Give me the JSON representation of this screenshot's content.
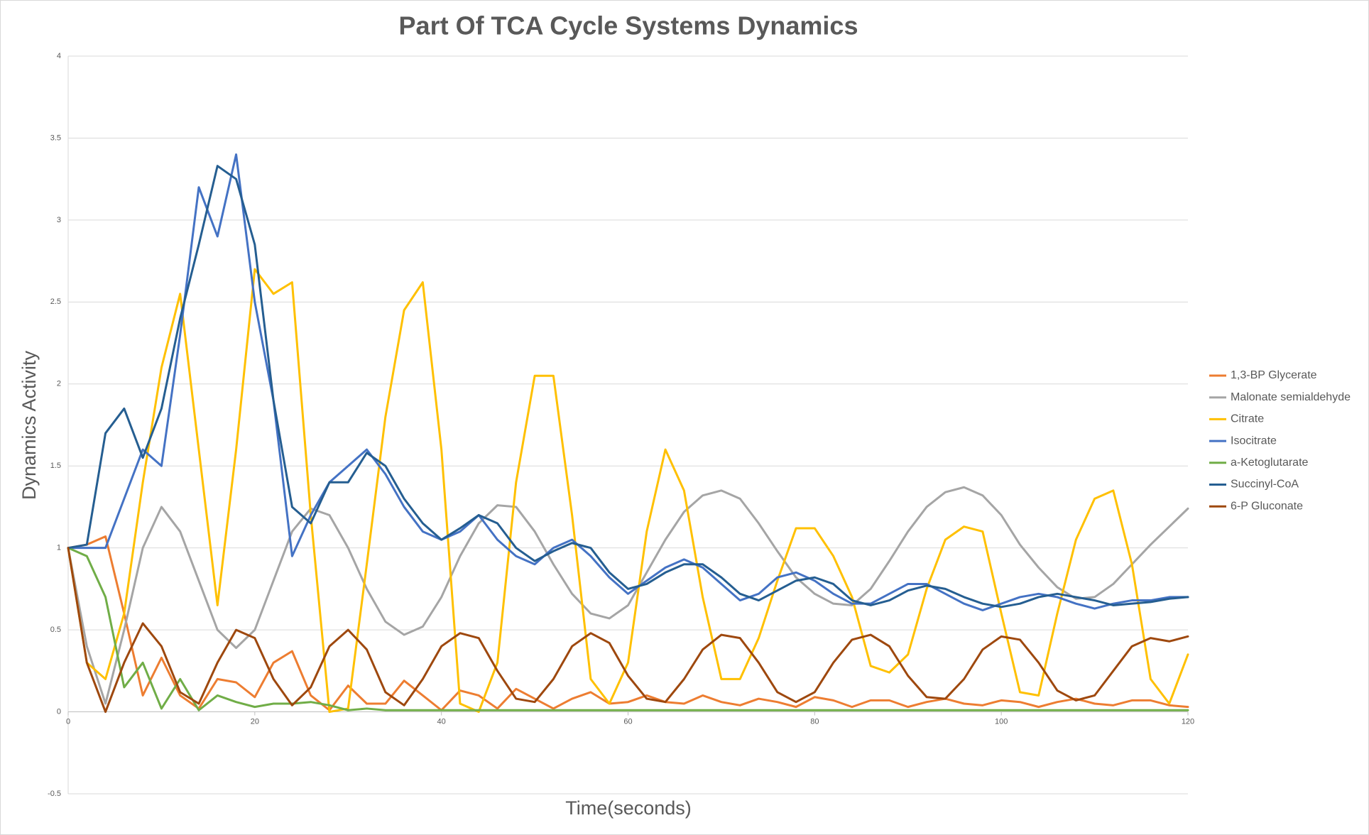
{
  "chart_data": {
    "type": "line",
    "title": "Part Of TCA Cycle Systems Dynamics",
    "x_label": "Time(seconds)",
    "y_label": "Dynamics Activity",
    "xlim": [
      0,
      120
    ],
    "xticks": [
      0,
      20,
      40,
      60,
      80,
      100,
      120
    ],
    "ylim": [
      -0.5,
      4
    ],
    "yticks": [
      -0.5,
      0,
      0.5,
      1,
      1.5,
      2,
      2.5,
      3,
      3.5,
      4
    ],
    "grid": true,
    "legend": "right",
    "x": [
      0,
      2,
      4,
      6,
      8,
      10,
      12,
      14,
      16,
      18,
      20,
      22,
      24,
      26,
      28,
      30,
      32,
      34,
      36,
      38,
      40,
      42,
      44,
      46,
      48,
      50,
      52,
      54,
      56,
      58,
      60,
      62,
      64,
      66,
      68,
      70,
      72,
      74,
      76,
      78,
      80,
      82,
      84,
      86,
      88,
      90,
      92,
      94,
      96,
      98,
      100,
      102,
      104,
      106,
      108,
      110,
      112,
      114,
      116,
      118,
      120
    ],
    "series": [
      {
        "name": "1,3-BP Glycerate",
        "color": "#ED7D31",
        "values": [
          1,
          1.02,
          1.07,
          0.6,
          0.1,
          0.33,
          0.1,
          0.02,
          0.2,
          0.18,
          0.09,
          0.3,
          0.37,
          0.1,
          0.01,
          0.16,
          0.05,
          0.05,
          0.19,
          0.1,
          0.01,
          0.13,
          0.1,
          0.02,
          0.14,
          0.08,
          0.02,
          0.08,
          0.12,
          0.05,
          0.06,
          0.1,
          0.06,
          0.05,
          0.1,
          0.06,
          0.04,
          0.08,
          0.06,
          0.03,
          0.09,
          0.07,
          0.03,
          0.07,
          0.07,
          0.03,
          0.06,
          0.08,
          0.05,
          0.04,
          0.07,
          0.06,
          0.03,
          0.06,
          0.08,
          0.05,
          0.04,
          0.07,
          0.07,
          0.04,
          0.03
        ]
      },
      {
        "name": "Malonate semialdehyde",
        "color": "#A5A5A5",
        "values": [
          1,
          0.4,
          0.05,
          0.5,
          1.0,
          1.25,
          1.1,
          0.8,
          0.5,
          0.39,
          0.5,
          0.8,
          1.1,
          1.24,
          1.2,
          1.0,
          0.75,
          0.55,
          0.47,
          0.52,
          0.7,
          0.95,
          1.15,
          1.26,
          1.25,
          1.1,
          0.9,
          0.72,
          0.6,
          0.57,
          0.65,
          0.85,
          1.05,
          1.22,
          1.32,
          1.35,
          1.3,
          1.15,
          0.98,
          0.82,
          0.72,
          0.66,
          0.65,
          0.75,
          0.92,
          1.1,
          1.25,
          1.34,
          1.37,
          1.32,
          1.2,
          1.02,
          0.88,
          0.76,
          0.69,
          0.7,
          0.78,
          0.9,
          1.02,
          1.13,
          1.24
        ]
      },
      {
        "name": "Citrate",
        "color": "#FFC000",
        "values": [
          1,
          0.3,
          0.2,
          0.6,
          1.4,
          2.1,
          2.55,
          1.6,
          0.65,
          1.6,
          2.7,
          2.55,
          2.62,
          1.2,
          0,
          0.02,
          0.9,
          1.8,
          2.45,
          2.62,
          1.6,
          0.05,
          0,
          0.3,
          1.4,
          2.05,
          2.05,
          1.2,
          0.2,
          0.05,
          0.3,
          1.1,
          1.6,
          1.35,
          0.7,
          0.2,
          0.2,
          0.45,
          0.8,
          1.12,
          1.12,
          0.95,
          0.7,
          0.28,
          0.24,
          0.35,
          0.75,
          1.05,
          1.13,
          1.1,
          0.6,
          0.12,
          0.1,
          0.6,
          1.05,
          1.3,
          1.35,
          0.9,
          0.2,
          0.05,
          0.35
        ]
      },
      {
        "name": "Isocitrate",
        "color": "#4472C4",
        "values": [
          1,
          1,
          1.0,
          1.3,
          1.6,
          1.5,
          2.3,
          3.2,
          2.9,
          3.4,
          2.5,
          1.9,
          0.95,
          1.2,
          1.4,
          1.5,
          1.6,
          1.45,
          1.25,
          1.1,
          1.05,
          1.1,
          1.2,
          1.05,
          0.95,
          0.9,
          1.0,
          1.05,
          0.95,
          0.82,
          0.72,
          0.8,
          0.88,
          0.93,
          0.88,
          0.78,
          0.68,
          0.72,
          0.82,
          0.85,
          0.8,
          0.72,
          0.66,
          0.66,
          0.72,
          0.78,
          0.78,
          0.72,
          0.66,
          0.62,
          0.66,
          0.7,
          0.72,
          0.7,
          0.66,
          0.63,
          0.66,
          0.68,
          0.68,
          0.7,
          0.7
        ]
      },
      {
        "name": "a-Ketoglutarate",
        "color": "#70AD47",
        "values": [
          1,
          0.95,
          0.7,
          0.15,
          0.3,
          0.02,
          0.2,
          0.01,
          0.1,
          0.06,
          0.03,
          0.05,
          0.05,
          0.06,
          0.04,
          0.01,
          0.02,
          0.01,
          0.01,
          0.01,
          0.01,
          0.01,
          0.01,
          0.01,
          0.01,
          0.01,
          0.01,
          0.01,
          0.01,
          0.01,
          0.01,
          0.01,
          0.01,
          0.01,
          0.01,
          0.01,
          0.01,
          0.01,
          0.01,
          0.01,
          0.01,
          0.01,
          0.01,
          0.01,
          0.01,
          0.01,
          0.01,
          0.01,
          0.01,
          0.01,
          0.01,
          0.01,
          0.01,
          0.01,
          0.01,
          0.01,
          0.01,
          0.01,
          0.01,
          0.01,
          0.01
        ]
      },
      {
        "name": "Succinyl-CoA",
        "color": "#255E91",
        "values": [
          1,
          1.02,
          1.7,
          1.85,
          1.55,
          1.85,
          2.4,
          2.85,
          3.33,
          3.25,
          2.85,
          1.9,
          1.25,
          1.15,
          1.4,
          1.4,
          1.58,
          1.5,
          1.3,
          1.15,
          1.05,
          1.12,
          1.2,
          1.15,
          1.0,
          0.92,
          0.98,
          1.03,
          1.0,
          0.85,
          0.75,
          0.78,
          0.85,
          0.9,
          0.9,
          0.82,
          0.72,
          0.68,
          0.74,
          0.8,
          0.82,
          0.78,
          0.68,
          0.65,
          0.68,
          0.74,
          0.77,
          0.75,
          0.7,
          0.66,
          0.64,
          0.66,
          0.7,
          0.72,
          0.7,
          0.68,
          0.65,
          0.66,
          0.67,
          0.69,
          0.7
        ]
      },
      {
        "name": "6-P Gluconate",
        "color": "#9E480E",
        "values": [
          1,
          0.3,
          0,
          0.3,
          0.54,
          0.4,
          0.12,
          0.05,
          0.3,
          0.5,
          0.45,
          0.2,
          0.04,
          0.15,
          0.4,
          0.5,
          0.38,
          0.12,
          0.04,
          0.2,
          0.4,
          0.48,
          0.45,
          0.25,
          0.08,
          0.06,
          0.2,
          0.4,
          0.48,
          0.42,
          0.22,
          0.08,
          0.06,
          0.2,
          0.38,
          0.47,
          0.45,
          0.3,
          0.12,
          0.06,
          0.12,
          0.3,
          0.44,
          0.47,
          0.4,
          0.22,
          0.09,
          0.08,
          0.2,
          0.38,
          0.46,
          0.44,
          0.3,
          0.13,
          0.07,
          0.1,
          0.25,
          0.4,
          0.45,
          0.43,
          0.46
        ]
      }
    ]
  }
}
